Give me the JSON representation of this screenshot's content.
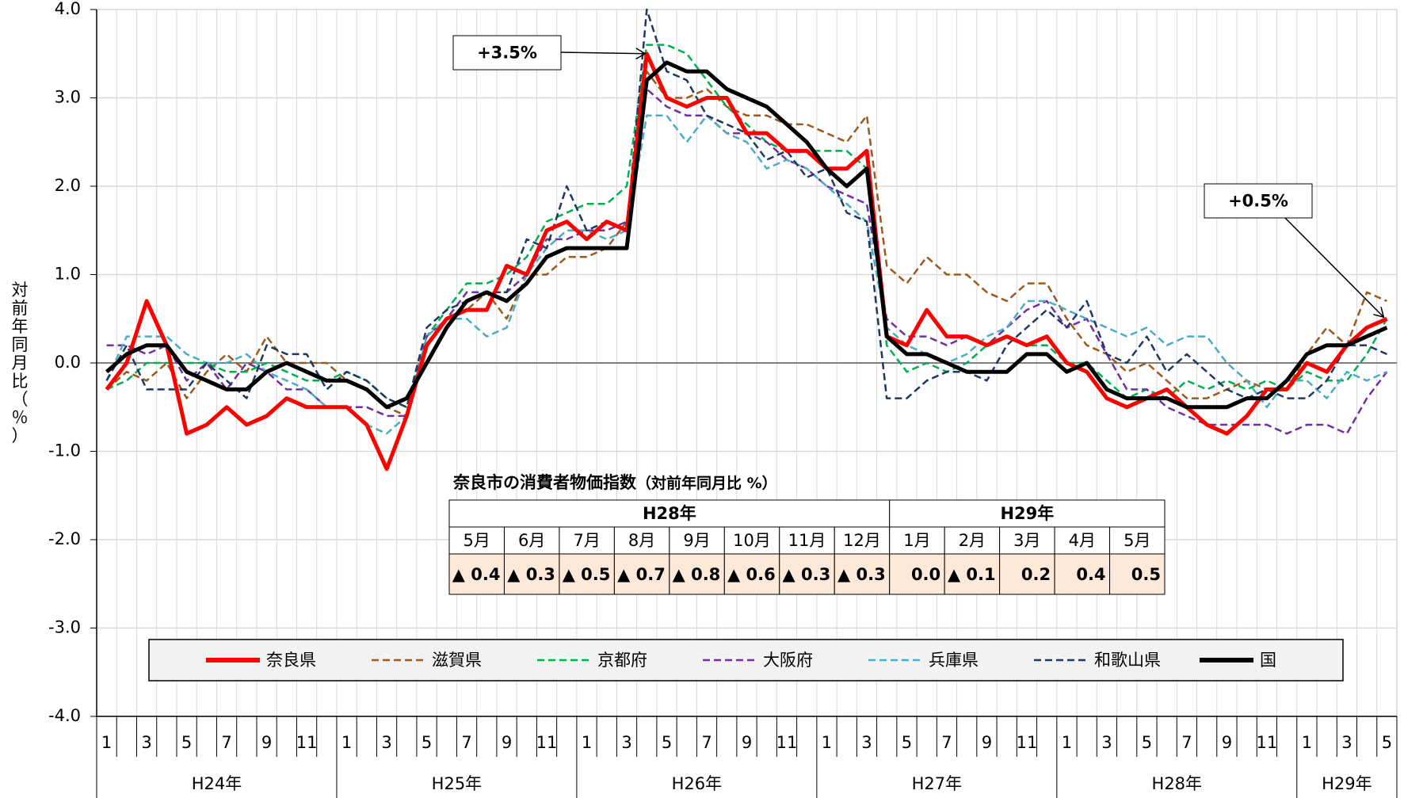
{
  "chart_data": {
    "type": "line",
    "y_axis_label": "対前年同月比（％）",
    "categories": [
      "1",
      null,
      "3",
      null,
      "5",
      null,
      "7",
      null,
      "9",
      null,
      "11",
      null,
      "1",
      null,
      "3",
      null,
      "5",
      null,
      "7",
      null,
      "9",
      null,
      "11",
      null,
      "1",
      null,
      "3",
      null,
      "5",
      null,
      "7",
      null,
      "9",
      null,
      "11",
      null,
      "1",
      null,
      "3",
      null,
      "5",
      null,
      "7",
      null,
      "9",
      null,
      "11",
      null,
      "1",
      null,
      "3",
      null,
      "5",
      null,
      "7",
      null,
      "9",
      null,
      "11",
      null,
      "1",
      null,
      "3",
      null,
      "5"
    ],
    "year_groups": [
      "H24年",
      "H25年",
      "H26年",
      "H27年",
      "H28年",
      "H29年"
    ],
    "ylim": [
      -4,
      4
    ],
    "yticks": [
      {
        "value": 4,
        "label": "4.0"
      },
      {
        "value": 3,
        "label": "3.0"
      },
      {
        "value": 2,
        "label": "2.0"
      },
      {
        "value": 1,
        "label": "1.0"
      },
      {
        "value": 0,
        "label": "0.0"
      },
      {
        "value": -1,
        "label": "-1.0"
      },
      {
        "value": -2,
        "label": "-2.0"
      },
      {
        "value": -3,
        "label": "-3.0"
      },
      {
        "value": -4,
        "label": "-4.0"
      }
    ],
    "negative_tick_color": "#ff0000",
    "grid": true,
    "legend": "bottom",
    "series": [
      {
        "name": "奈良県",
        "color": "#ff0000",
        "style": "solid",
        "values": [
          -0.3,
          0.0,
          0.7,
          0.2,
          -0.8,
          -0.7,
          -0.5,
          -0.7,
          -0.6,
          -0.4,
          -0.5,
          -0.5,
          -0.5,
          -0.7,
          -1.2,
          -0.6,
          0.2,
          0.5,
          0.6,
          0.6,
          1.1,
          1.0,
          1.5,
          1.6,
          1.4,
          1.6,
          1.5,
          3.5,
          3.0,
          2.9,
          3.0,
          3.0,
          2.6,
          2.6,
          2.4,
          2.4,
          2.2,
          2.2,
          2.4,
          0.3,
          0.2,
          0.6,
          0.3,
          0.3,
          0.2,
          0.3,
          0.2,
          0.3,
          0.0,
          -0.1,
          -0.4,
          -0.5,
          -0.4,
          -0.3,
          -0.5,
          -0.7,
          -0.8,
          -0.6,
          -0.3,
          -0.3,
          0.0,
          -0.1,
          0.2,
          0.4,
          0.5
        ]
      },
      {
        "name": "滋賀県",
        "color": "#9c5a1e",
        "style": "dashed",
        "values": [
          -0.3,
          -0.1,
          -0.2,
          0.0,
          -0.4,
          -0.1,
          0.1,
          -0.1,
          0.3,
          0.0,
          0.0,
          0.0,
          -0.2,
          -0.3,
          -0.5,
          -0.6,
          0.2,
          0.5,
          0.6,
          0.8,
          0.5,
          1.0,
          1.0,
          1.2,
          1.2,
          1.3,
          1.6,
          3.3,
          3.0,
          3.0,
          3.1,
          2.9,
          2.8,
          2.8,
          2.7,
          2.7,
          2.6,
          2.5,
          2.8,
          1.1,
          0.9,
          1.2,
          1.0,
          1.0,
          0.8,
          0.7,
          0.9,
          0.9,
          0.5,
          0.2,
          0.1,
          -0.1,
          0.0,
          -0.2,
          -0.4,
          -0.4,
          -0.3,
          -0.2,
          -0.3,
          -0.3,
          0.1,
          0.4,
          0.2,
          0.8,
          0.7
        ]
      },
      {
        "name": "京都府",
        "color": "#00b050",
        "style": "dashed",
        "values": [
          -0.3,
          -0.2,
          0.0,
          0.0,
          0.0,
          0.0,
          -0.1,
          -0.1,
          0.0,
          -0.1,
          -0.2,
          -0.2,
          -0.1,
          -0.2,
          -0.4,
          -0.5,
          0.3,
          0.6,
          0.9,
          0.9,
          1.0,
          1.2,
          1.6,
          1.7,
          1.8,
          1.8,
          2.0,
          3.6,
          3.6,
          3.5,
          3.2,
          2.9,
          2.7,
          2.5,
          2.4,
          2.4,
          2.4,
          2.4,
          2.2,
          0.2,
          -0.1,
          0.0,
          -0.1,
          0.0,
          0.2,
          0.3,
          0.2,
          0.2,
          0.0,
          0.0,
          -0.2,
          -0.4,
          -0.3,
          -0.4,
          -0.2,
          -0.3,
          -0.2,
          -0.3,
          -0.2,
          -0.3,
          -0.1,
          -0.2,
          -0.2,
          0.1,
          0.5
        ]
      },
      {
        "name": "大阪府",
        "color": "#7030a0",
        "style": "dashed",
        "values": [
          0.2,
          0.2,
          0.1,
          0.2,
          -0.2,
          0.0,
          -0.3,
          0.0,
          -0.1,
          -0.3,
          -0.3,
          -0.5,
          -0.5,
          -0.5,
          -0.6,
          -0.6,
          0.3,
          0.5,
          0.8,
          0.8,
          0.8,
          1.0,
          1.4,
          1.4,
          1.5,
          1.5,
          1.6,
          3.1,
          2.9,
          2.8,
          2.8,
          2.6,
          2.6,
          2.5,
          2.3,
          2.2,
          2.0,
          1.9,
          1.8,
          0.5,
          0.3,
          0.3,
          0.2,
          0.3,
          0.2,
          0.4,
          0.6,
          0.7,
          0.4,
          0.5,
          0.1,
          -0.3,
          -0.3,
          -0.5,
          -0.6,
          -0.7,
          -0.7,
          -0.7,
          -0.7,
          -0.8,
          -0.7,
          -0.7,
          -0.8,
          -0.4,
          -0.1
        ]
      },
      {
        "name": "兵庫県",
        "color": "#4bacc6",
        "style": "dashed",
        "values": [
          -0.2,
          0.3,
          0.3,
          0.3,
          0.1,
          0.0,
          0.0,
          0.1,
          -0.1,
          -0.2,
          -0.3,
          -0.5,
          -0.5,
          -0.7,
          -0.8,
          -0.6,
          0.3,
          0.5,
          0.5,
          0.3,
          0.4,
          1.0,
          1.3,
          1.5,
          1.5,
          1.4,
          1.5,
          2.8,
          2.8,
          2.5,
          2.8,
          2.6,
          2.5,
          2.2,
          2.3,
          2.2,
          2.0,
          1.8,
          1.6,
          0.4,
          0.2,
          0.1,
          0.0,
          0.1,
          0.3,
          0.4,
          0.7,
          0.7,
          0.6,
          0.5,
          0.4,
          0.3,
          0.4,
          0.2,
          0.3,
          0.3,
          0.0,
          -0.2,
          -0.5,
          -0.2,
          -0.2,
          -0.4,
          -0.1,
          -0.2,
          -0.1
        ]
      },
      {
        "name": "和歌山県",
        "color": "#1f3864",
        "style": "dashed",
        "values": [
          -0.2,
          0.2,
          -0.3,
          -0.3,
          -0.3,
          0.0,
          -0.2,
          -0.4,
          0.2,
          0.1,
          0.1,
          -0.3,
          -0.1,
          -0.2,
          -0.4,
          -0.5,
          0.4,
          0.6,
          0.7,
          0.8,
          0.8,
          1.4,
          1.3,
          2.0,
          1.5,
          1.6,
          1.5,
          4.0,
          3.3,
          3.2,
          2.8,
          2.7,
          2.6,
          2.3,
          2.4,
          2.1,
          2.2,
          1.7,
          1.6,
          -0.4,
          -0.4,
          -0.2,
          -0.1,
          -0.1,
          -0.2,
          0.2,
          0.4,
          0.6,
          0.4,
          0.7,
          0.1,
          0.0,
          0.3,
          -0.1,
          0.1,
          -0.1,
          -0.3,
          -0.4,
          -0.3,
          -0.4,
          -0.4,
          -0.2,
          0.2,
          0.2,
          0.1
        ]
      },
      {
        "name": "国",
        "color": "#000000",
        "style": "solid",
        "values": [
          -0.1,
          0.1,
          0.2,
          0.2,
          -0.1,
          -0.2,
          -0.3,
          -0.3,
          -0.1,
          0.0,
          -0.1,
          -0.2,
          -0.2,
          -0.3,
          -0.5,
          -0.4,
          0.0,
          0.4,
          0.7,
          0.8,
          0.7,
          0.9,
          1.2,
          1.3,
          1.3,
          1.3,
          1.3,
          3.2,
          3.4,
          3.3,
          3.3,
          3.1,
          3.0,
          2.9,
          2.7,
          2.5,
          2.2,
          2.0,
          2.2,
          0.3,
          0.1,
          0.1,
          0.0,
          -0.1,
          -0.1,
          -0.1,
          0.1,
          0.1,
          -0.1,
          0.0,
          -0.3,
          -0.4,
          -0.4,
          -0.4,
          -0.5,
          -0.5,
          -0.5,
          -0.4,
          -0.4,
          -0.2,
          0.1,
          0.2,
          0.2,
          0.3,
          0.4
        ]
      }
    ],
    "annotations": [
      "+3.5%",
      "+0.5%"
    ],
    "table": {
      "title": "奈良市の消費者物価指数",
      "title_note": "（対前年同月比 %）",
      "fill": "#fde9d9",
      "groups": [
        {
          "label": "H28年",
          "columns": [
            "5月",
            "6月",
            "7月",
            "8月",
            "9月",
            "10月",
            "11月",
            "12月"
          ],
          "cells": [
            "▲ 0.4",
            "▲ 0.3",
            "▲ 0.5",
            "▲ 0.7",
            "▲ 0.8",
            "▲ 0.6",
            "▲ 0.3",
            "▲ 0.3"
          ]
        },
        {
          "label": "H29年",
          "columns": [
            "1月",
            "2月",
            "3月",
            "4月",
            "5月"
          ],
          "cells": [
            "0.0",
            "▲ 0.1",
            "0.2",
            "0.4",
            "0.5"
          ]
        }
      ]
    }
  }
}
